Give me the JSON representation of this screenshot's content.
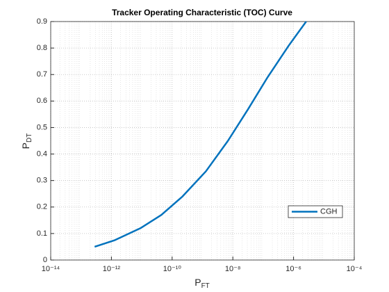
{
  "chart_data": {
    "type": "line",
    "title": "Tracker Operating Characteristic (TOC) Curve",
    "xlabel": {
      "text": "P",
      "sub": "FT"
    },
    "ylabel": {
      "text": "P",
      "sub": "DT"
    },
    "xscale": "log",
    "x": [
      2.8e-13,
      1.3e-12,
      9e-12,
      4.4e-11,
      2.2e-10,
      1.3e-09,
      6.9e-09,
      3.2e-08,
      1.4e-07,
      7e-07,
      2.6e-06
    ],
    "series": [
      {
        "name": "CGH",
        "color": "#0072bd",
        "values": [
          0.05,
          0.075,
          0.12,
          0.17,
          0.24,
          0.335,
          0.45,
          0.57,
          0.69,
          0.81,
          0.9
        ]
      }
    ],
    "xlim": [
      1e-14,
      0.0001
    ],
    "xticks": [
      {
        "value": 1e-14,
        "label": "10⁻¹⁴"
      },
      {
        "value": 1e-12,
        "label": "10⁻¹²"
      },
      {
        "value": 1e-10,
        "label": "10⁻¹⁰"
      },
      {
        "value": 1e-08,
        "label": "10⁻⁸"
      },
      {
        "value": 1e-06,
        "label": "10⁻⁶"
      },
      {
        "value": 0.0001,
        "label": "10⁻⁴"
      }
    ],
    "ylim": [
      0,
      0.9
    ],
    "yticks": [
      0,
      0.1,
      0.2,
      0.3,
      0.4,
      0.5,
      0.6,
      0.7,
      0.8,
      0.9
    ],
    "grid": true,
    "minor_grid": true,
    "legend": "southeast"
  }
}
